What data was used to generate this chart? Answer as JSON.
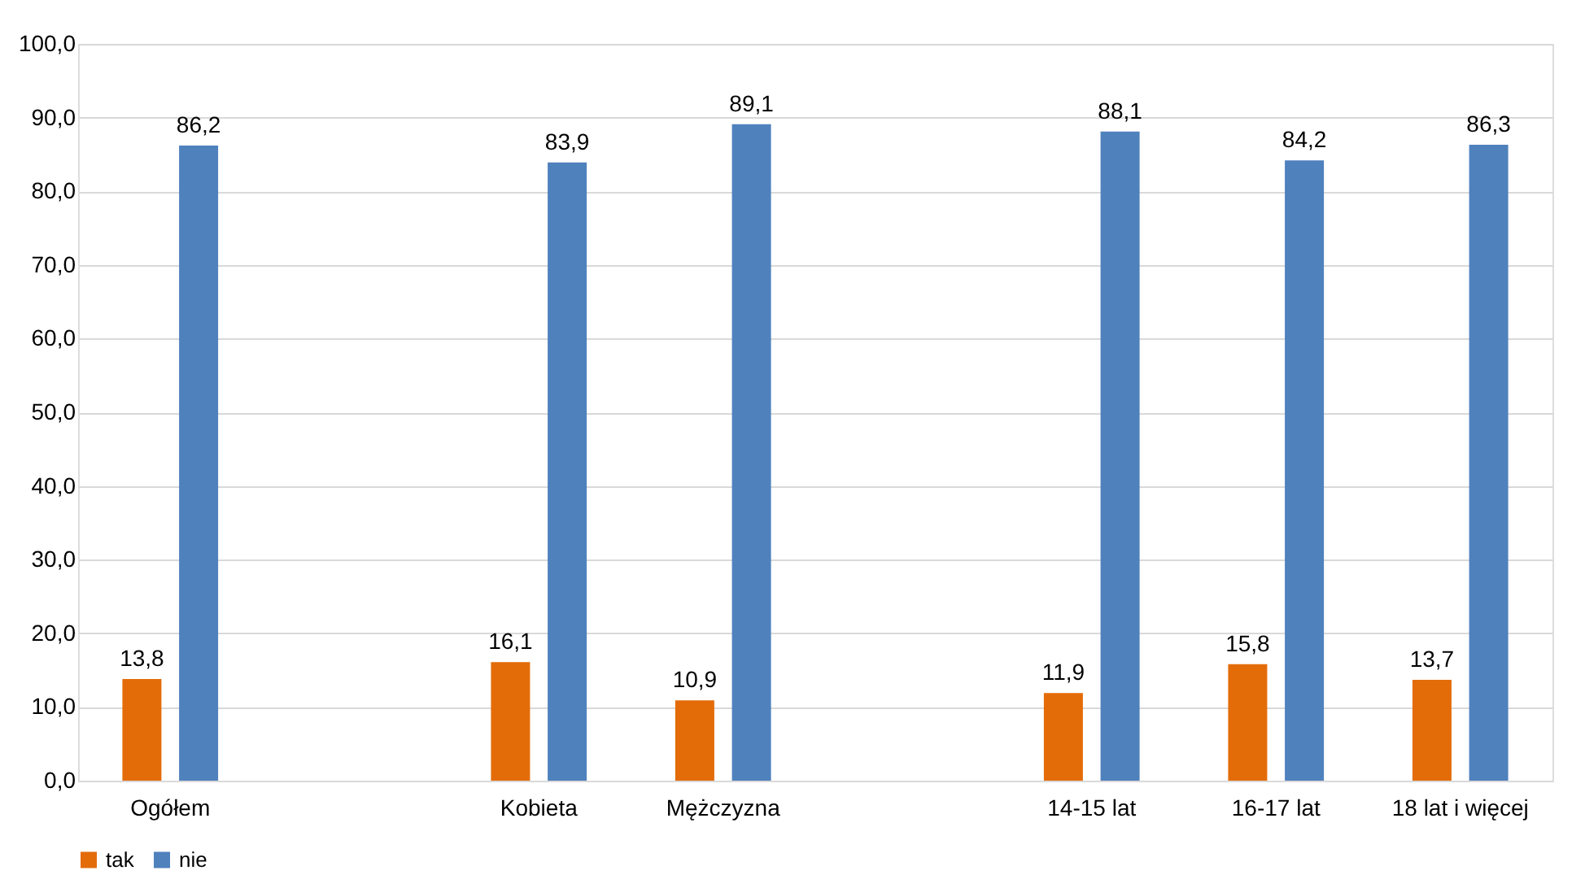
{
  "chart_data": {
    "type": "bar",
    "categories": [
      "Ogółem",
      null,
      "Kobieta",
      "Mężczyzna",
      null,
      "14-15 lat",
      "16-17 lat",
      "18 lat i więcej"
    ],
    "series": [
      {
        "name": "tak",
        "color": "#e36c09",
        "values": [
          13.8,
          null,
          16.1,
          10.9,
          null,
          11.9,
          15.8,
          13.7
        ],
        "value_labels": [
          "13,8",
          null,
          "16,1",
          "10,9",
          null,
          "11,9",
          "15,8",
          "13,7"
        ]
      },
      {
        "name": "nie",
        "color": "#4f81bd",
        "values": [
          86.2,
          null,
          83.9,
          89.1,
          null,
          88.1,
          84.2,
          86.3
        ],
        "value_labels": [
          "86,2",
          null,
          "83,9",
          "89,1",
          null,
          "88,1",
          "84,2",
          "86,3"
        ]
      }
    ],
    "ylim": [
      0,
      100
    ],
    "yticks": [
      {
        "value": 0,
        "label": "0,0"
      },
      {
        "value": 10,
        "label": "10,0"
      },
      {
        "value": 20,
        "label": "20,0"
      },
      {
        "value": 30,
        "label": "30,0"
      },
      {
        "value": 40,
        "label": "40,0"
      },
      {
        "value": 50,
        "label": "50,0"
      },
      {
        "value": 60,
        "label": "60,0"
      },
      {
        "value": 70,
        "label": "70,0"
      },
      {
        "value": 80,
        "label": "80,0"
      },
      {
        "value": 90,
        "label": "90,0"
      },
      {
        "value": 100,
        "label": "100,0"
      }
    ],
    "grid": "y",
    "legend": "bottom"
  }
}
